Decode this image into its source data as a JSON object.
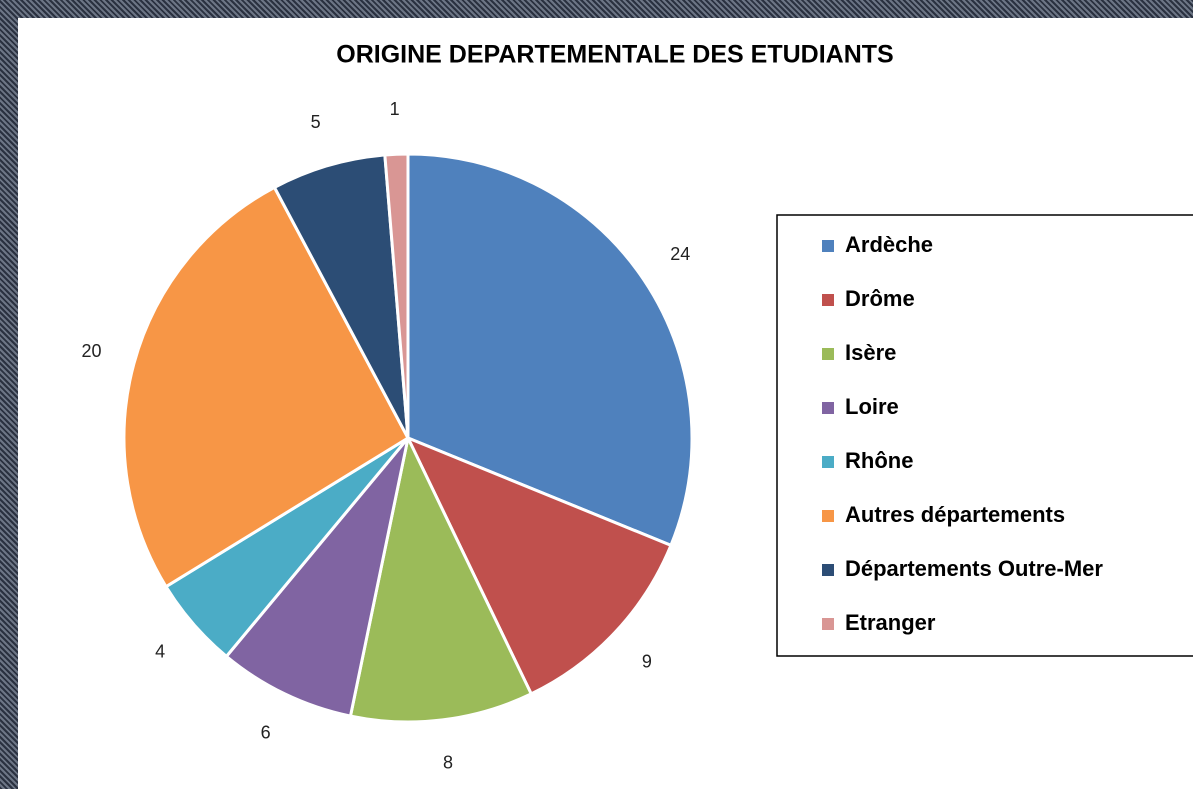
{
  "chart_data": {
    "type": "pie",
    "title": "ORIGINE DEPARTEMENTALE DES ETUDIANTS",
    "categories": [
      "Ardèche",
      "Drôme",
      "Isère",
      "Loire",
      "Rhône",
      "Autres départements",
      "Départements Outre-Mer",
      "Etranger"
    ],
    "values": [
      24,
      9,
      8,
      6,
      4,
      20,
      5,
      1
    ],
    "colors": [
      "#4f81bd",
      "#c0504d",
      "#9bbb59",
      "#8064a2",
      "#4bacc6",
      "#f79646",
      "#2c4d75",
      "#d99694"
    ],
    "legend": "right"
  }
}
